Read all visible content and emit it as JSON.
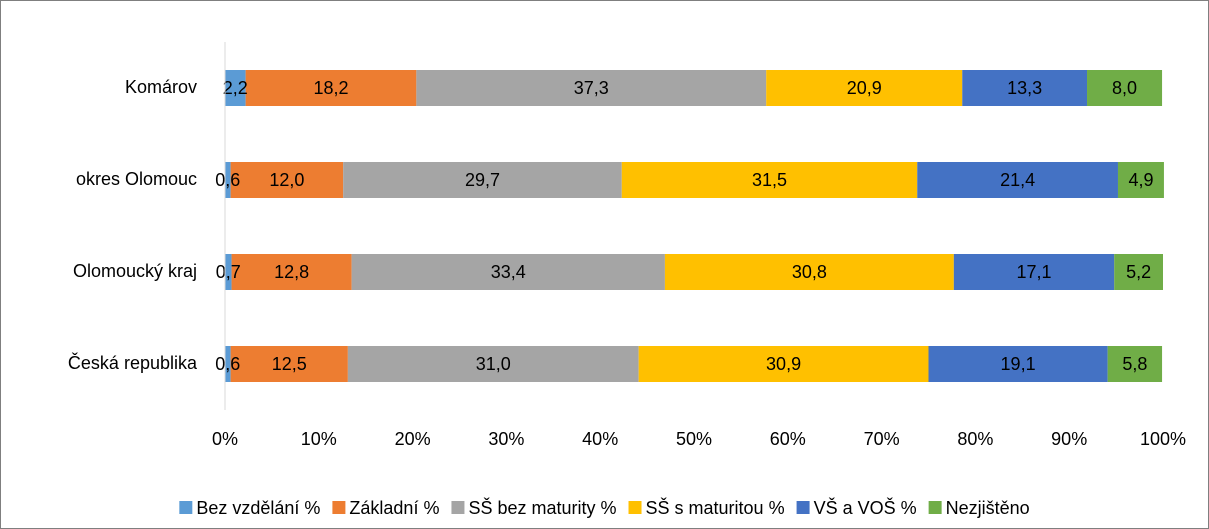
{
  "chart_data": {
    "type": "stacked_barh",
    "categories": [
      "Komárov",
      "okres Olomouc",
      "Olomoucký kraj",
      "Česká republika"
    ],
    "series": [
      {
        "name": "Bez vzdělání %",
        "color": "#5b9bd5",
        "values": [
          2.2,
          0.6,
          0.7,
          0.6
        ],
        "value_labels": [
          "2,2",
          "0,6",
          "0,7",
          "0,6"
        ]
      },
      {
        "name": "Základní %",
        "color": "#ed7d31",
        "values": [
          18.2,
          12.0,
          12.8,
          12.5
        ],
        "value_labels": [
          "18,2",
          "12,0",
          "12,8",
          "12,5"
        ]
      },
      {
        "name": "SŠ bez maturity %",
        "color": "#a5a5a5",
        "values": [
          37.3,
          29.7,
          33.4,
          31.0
        ],
        "value_labels": [
          "37,3",
          "29,7",
          "33,4",
          "31,0"
        ]
      },
      {
        "name": "SŠ s maturitou %",
        "color": "#ffc000",
        "values": [
          20.9,
          31.5,
          30.8,
          30.9
        ],
        "value_labels": [
          "20,9",
          "31,5",
          "30,8",
          "30,9"
        ]
      },
      {
        "name": "VŠ a VOŠ %",
        "color": "#4472c4",
        "values": [
          13.3,
          21.4,
          17.1,
          19.1
        ],
        "value_labels": [
          "13,3",
          "21,4",
          "17,1",
          "19,1"
        ]
      },
      {
        "name": "Nezjištěno",
        "color": "#70ad47",
        "values": [
          8.0,
          4.9,
          5.2,
          5.8
        ],
        "value_labels": [
          "8,0",
          "4,9",
          "5,2",
          "5,8"
        ]
      }
    ],
    "xlim": [
      0,
      100
    ],
    "xticks": [
      {
        "value": 0,
        "label": "0%"
      },
      {
        "value": 10,
        "label": "10%"
      },
      {
        "value": 20,
        "label": "20%"
      },
      {
        "value": 30,
        "label": "30%"
      },
      {
        "value": 40,
        "label": "40%"
      },
      {
        "value": 50,
        "label": "50%"
      },
      {
        "value": 60,
        "label": "60%"
      },
      {
        "value": 70,
        "label": "70%"
      },
      {
        "value": 80,
        "label": "80%"
      },
      {
        "value": 90,
        "label": "90%"
      },
      {
        "value": 100,
        "label": "100%"
      }
    ],
    "legend": "bottom",
    "grid": false
  }
}
